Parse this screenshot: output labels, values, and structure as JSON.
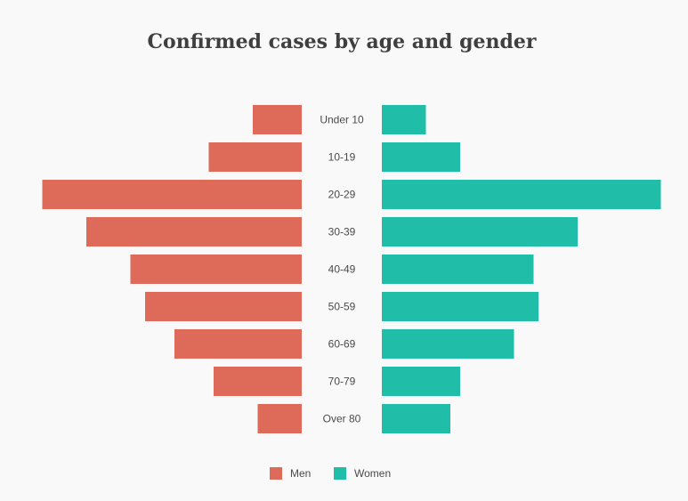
{
  "chart_data": {
    "type": "bar",
    "orientation": "horizontal-population-pyramid",
    "title": "Confirmed cases by age and gender",
    "categories": [
      "Under 10",
      "10-19",
      "20-29",
      "30-39",
      "40-49",
      "50-59",
      "60-69",
      "70-79",
      "Over 80"
    ],
    "series": [
      {
        "name": "Men",
        "color": "#de6b5a",
        "values": [
          10,
          19,
          53,
          44,
          35,
          32,
          26,
          18,
          9
        ]
      },
      {
        "name": "Women",
        "color": "#20bea8",
        "values": [
          9,
          16,
          57,
          40,
          31,
          32,
          27,
          16,
          14
        ]
      }
    ],
    "legend": "bottom-center",
    "grid": false
  }
}
